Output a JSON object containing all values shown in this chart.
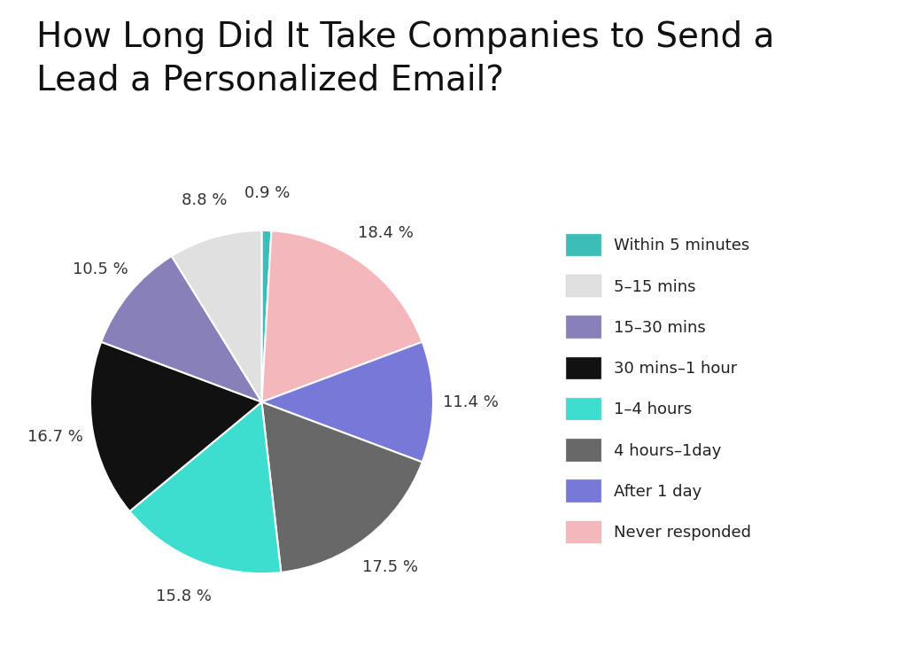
{
  "title": "How Long Did It Take Companies to Send a\nLead a Personalized Email?",
  "title_fontsize": 28,
  "labels": [
    "Within 5 minutes",
    "5–15 mins",
    "15–30 mins",
    "30 mins–1 hour",
    "1–4 hours",
    "4 hours–1day",
    "After 1 day",
    "Never responded"
  ],
  "values": [
    0.9,
    8.8,
    10.5,
    16.7,
    15.8,
    17.5,
    11.4,
    18.4
  ],
  "colors": [
    "#3dbdb8",
    "#e0e0e0",
    "#8880b8",
    "#111111",
    "#3dddd0",
    "#686868",
    "#7878d8",
    "#f4b8bc"
  ],
  "pct_labels": [
    "0.9 %",
    "8.8 %",
    "10.5 %",
    "16.7 %",
    "15.8 %",
    "17.5 %",
    "11.4 %",
    "18.4 %"
  ],
  "pie_order_indices": [
    0,
    7,
    6,
    5,
    4,
    3,
    2,
    1
  ],
  "startangle": 90,
  "background_color": "#ffffff",
  "label_fontsize": 13,
  "legend_fontsize": 13
}
